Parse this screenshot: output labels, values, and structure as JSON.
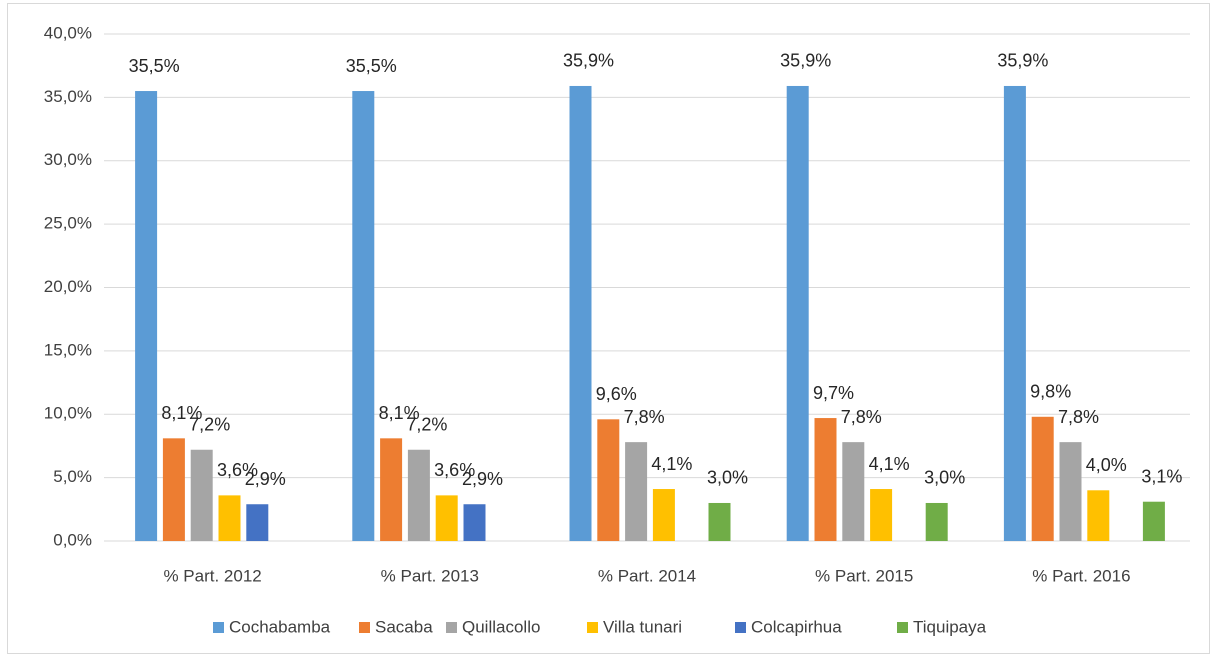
{
  "chart_data": {
    "type": "bar",
    "categories": [
      "% Part. 2012",
      "% Part. 2013",
      "% Part. 2014",
      "% Part. 2015",
      "% Part. 2016"
    ],
    "series": [
      {
        "name": "Cochabamba",
        "color": "#5b9bd5",
        "values": [
          35.5,
          35.5,
          35.9,
          35.9,
          35.9
        ],
        "value_labels": [
          "35,5%",
          "35,5%",
          "35,9%",
          "35,9%",
          "35,9%"
        ]
      },
      {
        "name": "Sacaba",
        "color": "#ed7d31",
        "values": [
          8.1,
          8.1,
          9.6,
          9.7,
          9.8
        ],
        "value_labels": [
          "8,1%",
          "8,1%",
          "9,6%",
          "9,7%",
          "9,8%"
        ]
      },
      {
        "name": "Quillacollo",
        "color": "#a5a5a5",
        "values": [
          7.2,
          7.2,
          7.8,
          7.8,
          7.8
        ],
        "value_labels": [
          "7,2%",
          "7,2%",
          "7,8%",
          "7,8%",
          "7,8%"
        ]
      },
      {
        "name": "Villa tunari",
        "color": "#ffc000",
        "values": [
          3.6,
          3.6,
          4.1,
          4.1,
          4.0
        ],
        "value_labels": [
          "3,6%",
          "3,6%",
          "4,1%",
          "4,1%",
          "4,0%"
        ]
      },
      {
        "name": "Colcapirhua",
        "color": "#4472c4",
        "values": [
          2.9,
          2.9,
          null,
          null,
          null
        ],
        "value_labels": [
          "2,9%",
          "2,9%",
          null,
          null,
          null
        ]
      },
      {
        "name": "Tiquipaya",
        "color": "#70ad47",
        "values": [
          null,
          null,
          3.0,
          3.0,
          3.1
        ],
        "value_labels": [
          null,
          null,
          "3,0%",
          "3,0%",
          "3,1%"
        ]
      }
    ],
    "ylim": [
      0,
      40
    ],
    "yticks": [
      {
        "value": 0,
        "label": "0,0%"
      },
      {
        "value": 5,
        "label": "5,0%"
      },
      {
        "value": 10,
        "label": "10,0%"
      },
      {
        "value": 15,
        "label": "15,0%"
      },
      {
        "value": 20,
        "label": "20,0%"
      },
      {
        "value": 25,
        "label": "25,0%"
      },
      {
        "value": 30,
        "label": "30,0%"
      },
      {
        "value": 35,
        "label": "35,0%"
      },
      {
        "value": 40,
        "label": "40,0%"
      }
    ],
    "grid": true,
    "legend": "bottom"
  }
}
